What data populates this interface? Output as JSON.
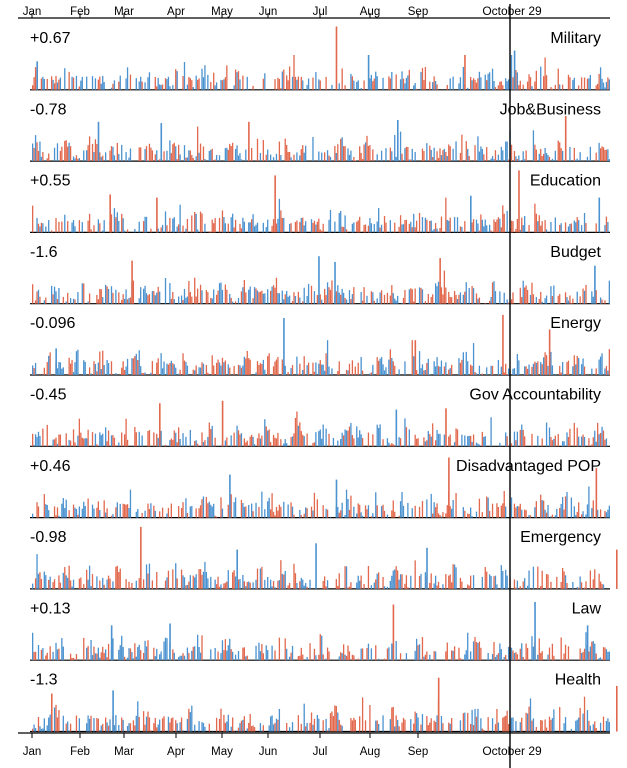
{
  "chart_data": {
    "type": "bar",
    "months": [
      "Jan",
      "Feb",
      "Mar",
      "Apr",
      "May",
      "Jun",
      "Jul",
      "Aug",
      "Sep"
    ],
    "marker_label": "October 29",
    "colors": {
      "blue": "#4b92d0",
      "red": "#e2684d",
      "axis": "#000000"
    },
    "panels": [
      {
        "name": "Military",
        "score": "+0.67",
        "ymax": 1,
        "spikes": [
          {
            "day": 3,
            "v": 0.45,
            "c": "b"
          },
          {
            "day": 208,
            "v": 1.0,
            "c": "r"
          },
          {
            "day": 230,
            "v": 0.55,
            "c": "b"
          },
          {
            "day": 296,
            "v": 0.55,
            "c": "r"
          },
          {
            "day": 330,
            "v": 0.62,
            "c": "b"
          }
        ]
      },
      {
        "name": "Job&Business",
        "score": "-0.78",
        "ymax": 1,
        "spikes": [
          {
            "day": 45,
            "v": 0.62,
            "c": "b"
          },
          {
            "day": 88,
            "v": 0.6,
            "c": "b"
          },
          {
            "day": 148,
            "v": 0.62,
            "c": "r"
          },
          {
            "day": 250,
            "v": 0.65,
            "c": "b"
          },
          {
            "day": 365,
            "v": 0.9,
            "c": "r"
          }
        ]
      },
      {
        "name": "Education",
        "score": "+0.55",
        "ymax": 1,
        "spikes": [
          {
            "day": 53,
            "v": 0.6,
            "c": "r"
          },
          {
            "day": 85,
            "v": 0.55,
            "c": "r"
          },
          {
            "day": 166,
            "v": 0.9,
            "c": "r"
          },
          {
            "day": 300,
            "v": 0.58,
            "c": "b"
          },
          {
            "day": 333,
            "v": 0.98,
            "c": "r"
          },
          {
            "day": 388,
            "v": 0.55,
            "c": "b"
          }
        ]
      },
      {
        "name": "Budget",
        "score": "-1.6",
        "ymax": 1,
        "spikes": [
          {
            "day": 68,
            "v": 0.68,
            "c": "r"
          },
          {
            "day": 196,
            "v": 0.75,
            "c": "b"
          },
          {
            "day": 207,
            "v": 0.66,
            "c": "b"
          },
          {
            "day": 279,
            "v": 0.72,
            "c": "r"
          },
          {
            "day": 385,
            "v": 0.6,
            "c": "b"
          }
        ]
      },
      {
        "name": "Energy",
        "score": "-0.096",
        "ymax": 1,
        "spikes": [
          {
            "day": 16,
            "v": 0.42,
            "c": "b"
          },
          {
            "day": 172,
            "v": 0.9,
            "c": "b"
          },
          {
            "day": 262,
            "v": 0.55,
            "c": "r"
          },
          {
            "day": 322,
            "v": 0.95,
            "c": "r"
          },
          {
            "day": 354,
            "v": 0.72,
            "c": "r"
          }
        ]
      },
      {
        "name": "Gov Accountability",
        "score": "-0.45",
        "ymax": 1,
        "spikes": [
          {
            "day": 87,
            "v": 0.68,
            "c": "r"
          },
          {
            "day": 130,
            "v": 0.72,
            "c": "r"
          },
          {
            "day": 249,
            "v": 0.58,
            "c": "b"
          },
          {
            "day": 283,
            "v": 0.6,
            "c": "r"
          }
        ]
      },
      {
        "name": "Disadvantaged POP",
        "score": "+0.46",
        "ymax": 1,
        "spikes": [
          {
            "day": 135,
            "v": 0.68,
            "c": "b"
          },
          {
            "day": 208,
            "v": 0.6,
            "c": "b"
          },
          {
            "day": 285,
            "v": 0.95,
            "c": "r"
          },
          {
            "day": 386,
            "v": 0.85,
            "c": "r"
          }
        ]
      },
      {
        "name": "Emergency",
        "score": "-0.98",
        "ymax": 1,
        "spikes": [
          {
            "day": 74,
            "v": 0.98,
            "c": "r"
          },
          {
            "day": 140,
            "v": 0.62,
            "c": "b"
          },
          {
            "day": 194,
            "v": 0.72,
            "c": "b"
          },
          {
            "day": 270,
            "v": 0.65,
            "c": "b"
          },
          {
            "day": 400,
            "v": 0.62,
            "c": "r"
          }
        ]
      },
      {
        "name": "Law",
        "score": "+0.13",
        "ymax": 1,
        "spikes": [
          {
            "day": 54,
            "v": 0.55,
            "c": "b"
          },
          {
            "day": 94,
            "v": 0.58,
            "c": "b"
          },
          {
            "day": 247,
            "v": 0.88,
            "c": "r"
          },
          {
            "day": 344,
            "v": 0.92,
            "c": "b"
          },
          {
            "day": 380,
            "v": 0.55,
            "c": "b"
          }
        ]
      },
      {
        "name": "Health",
        "score": "-1.3",
        "ymax": 1,
        "spikes": [
          {
            "day": 13,
            "v": 0.6,
            "c": "r"
          },
          {
            "day": 55,
            "v": 0.65,
            "c": "b"
          },
          {
            "day": 278,
            "v": 0.85,
            "c": "r"
          },
          {
            "day": 400,
            "v": 0.72,
            "c": "r"
          }
        ]
      }
    ]
  }
}
